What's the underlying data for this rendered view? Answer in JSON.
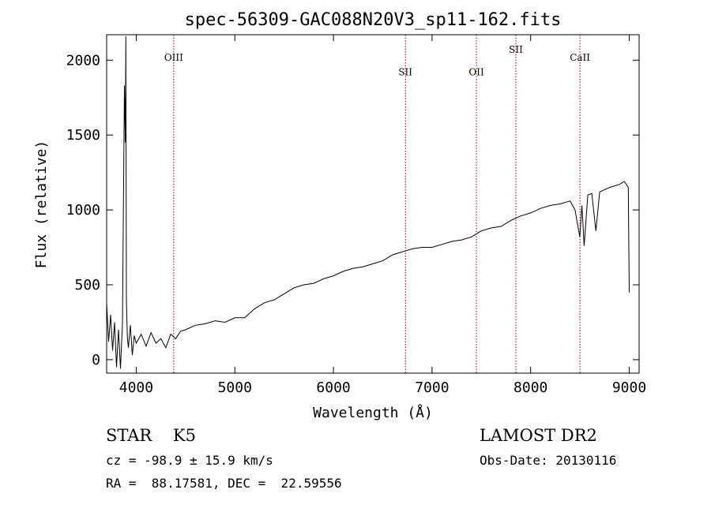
{
  "chart_data": {
    "type": "line",
    "title": "spec-56309-GAC088N20V3_sp11-162.fits",
    "xlabel": "Wavelength (Å)",
    "ylabel": "Flux (relative)",
    "xlim": [
      3700,
      9100
    ],
    "ylim": [
      -90,
      2170
    ],
    "xticks": [
      4000,
      5000,
      6000,
      7000,
      8000,
      9000
    ],
    "yticks": [
      0,
      500,
      1000,
      1500,
      2000
    ],
    "grid": false,
    "series": [
      {
        "x": [
          3700,
          3720,
          3740,
          3760,
          3780,
          3800,
          3820,
          3840,
          3860,
          3880,
          3890,
          3895,
          3900,
          3910,
          3920,
          3940,
          3960,
          3980,
          4000,
          4050,
          4100,
          4150,
          4200,
          4250,
          4300,
          4350,
          4400,
          4450,
          4500,
          4600,
          4700,
          4800,
          4900,
          5000,
          5100,
          5200,
          5300,
          5400,
          5500,
          5600,
          5700,
          5800,
          5900,
          6000,
          6100,
          6200,
          6300,
          6400,
          6500,
          6600,
          6700,
          6800,
          6900,
          7000,
          7100,
          7200,
          7300,
          7400,
          7500,
          7600,
          7700,
          7800,
          7900,
          8000,
          8100,
          8200,
          8300,
          8400,
          8450,
          8498,
          8520,
          8542,
          8580,
          8620,
          8662,
          8700,
          8800,
          8900,
          8950,
          8990,
          9000
        ],
        "y": [
          380,
          120,
          300,
          60,
          250,
          -50,
          200,
          -60,
          240,
          1830,
          1450,
          2160,
          400,
          150,
          80,
          230,
          30,
          160,
          110,
          170,
          90,
          180,
          110,
          140,
          80,
          170,
          140,
          190,
          200,
          230,
          240,
          260,
          250,
          280,
          280,
          340,
          380,
          400,
          440,
          480,
          500,
          510,
          540,
          560,
          590,
          610,
          620,
          640,
          660,
          700,
          720,
          740,
          750,
          750,
          770,
          790,
          800,
          820,
          860,
          880,
          890,
          930,
          960,
          980,
          1010,
          1030,
          1040,
          1060,
          1000,
          820,
          1030,
          760,
          1100,
          1110,
          860,
          1120,
          1150,
          1170,
          1190,
          1150,
          450
        ]
      }
    ],
    "line_markers": [
      {
        "label": "OIII",
        "x": 4380,
        "y_label": 1995
      },
      {
        "label": "SII",
        "x": 6730,
        "y_label": 1900
      },
      {
        "label": "OII",
        "x": 7450,
        "y_label": 1900
      },
      {
        "label": "SII",
        "x": 7850,
        "y_label": 2050
      },
      {
        "label": "CaII",
        "x": 8500,
        "y_label": 1995
      }
    ],
    "marker_color": "#8b0000",
    "line_color": "#000000"
  },
  "info": {
    "class_line": "STAR    K5",
    "cz_line": "cz = -98.9 ± 15.9 km/s",
    "radec_line": "RA =  88.17581, DEC =  22.59556",
    "survey": "LAMOST DR2",
    "obs_date": "Obs-Date: 20130116"
  }
}
